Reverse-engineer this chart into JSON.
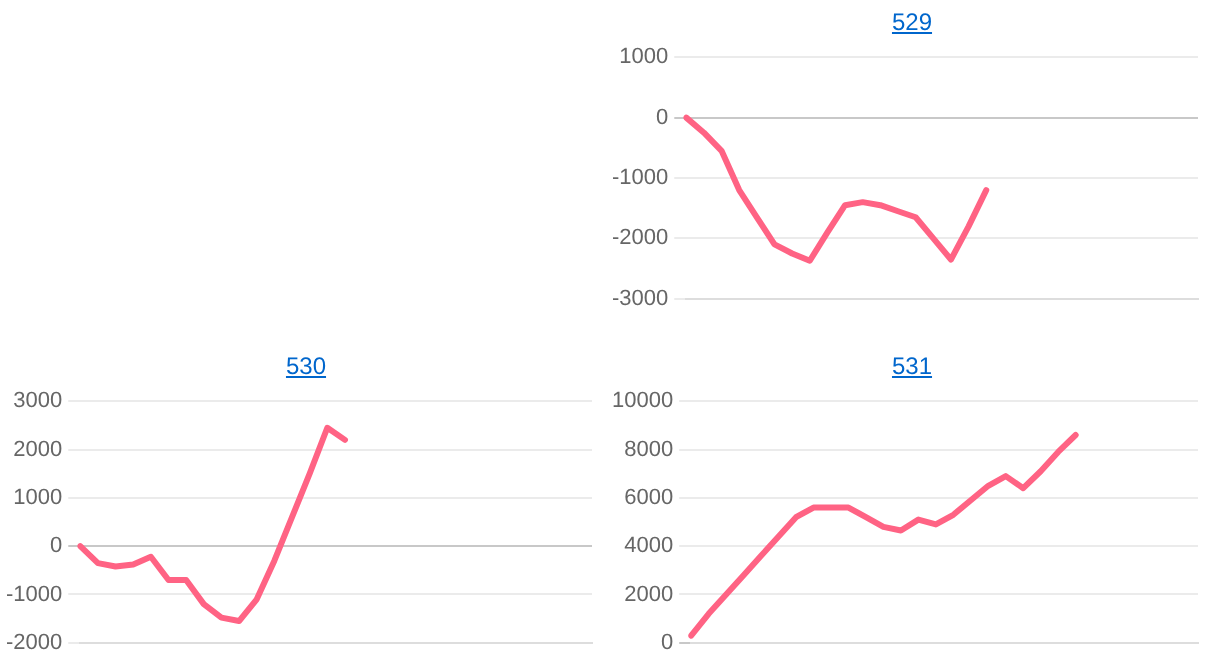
{
  "chart_data": [
    {
      "type": "line",
      "title": "529",
      "categories": [
        null,
        null,
        null,
        null,
        null,
        null,
        null,
        null,
        null,
        null,
        null,
        null,
        null,
        null,
        null,
        null,
        null,
        null,
        null,
        null,
        null,
        null,
        null,
        null,
        null,
        null,
        null,
        null,
        null,
        null
      ],
      "values": [
        0,
        -250,
        -550,
        -1200,
        -1650,
        -2100,
        -2250,
        -2370,
        -1900,
        -1450,
        -1400,
        -1450,
        -1550,
        -1650,
        -2000,
        -2350,
        -1800,
        -1200,
        null,
        null,
        null,
        null,
        null,
        null,
        null,
        null,
        null,
        null,
        null,
        null
      ],
      "color": "#ff6384",
      "ylim": [
        -3000,
        1000
      ],
      "yticks": [
        -3000,
        -2000,
        -1000,
        0,
        1000
      ],
      "grid": "y",
      "marker": "none"
    },
    {
      "type": "line",
      "title": "530",
      "categories": [
        null,
        null,
        null,
        null,
        null,
        null,
        null,
        null,
        null,
        null,
        null,
        null,
        null,
        null,
        null,
        null,
        null,
        null,
        null,
        null,
        null,
        null,
        null,
        null,
        null,
        null,
        null,
        null,
        null,
        null
      ],
      "values": [
        0,
        -350,
        -420,
        -380,
        -220,
        -700,
        -700,
        -1200,
        -1480,
        -1550,
        -1100,
        -300,
        600,
        1500,
        2450,
        2200,
        null,
        null,
        null,
        null,
        null,
        null,
        null,
        null,
        null,
        null,
        null,
        null,
        null,
        null
      ],
      "color": "#ff6384",
      "ylim": [
        -2000,
        3000
      ],
      "yticks": [
        -2000,
        -1000,
        0,
        1000,
        2000,
        3000
      ],
      "grid": "y",
      "marker": "none"
    },
    {
      "type": "line",
      "title": "531",
      "categories": [
        null,
        null,
        null,
        null,
        null,
        null,
        null,
        null,
        null,
        null,
        null,
        null,
        null,
        null,
        null,
        null,
        null,
        null,
        null,
        null,
        null,
        null,
        null,
        null,
        null,
        null,
        null,
        null,
        null,
        null
      ],
      "values": [
        300,
        1200,
        2000,
        2800,
        3600,
        4400,
        5200,
        5600,
        5600,
        5600,
        5200,
        4800,
        4650,
        5100,
        4900,
        5300,
        5900,
        6500,
        6900,
        6400,
        7100,
        7900,
        8600,
        null,
        null,
        null,
        null,
        null,
        null,
        null
      ],
      "color": "#ff6384",
      "ylim": [
        0,
        10000
      ],
      "yticks": [
        0,
        2000,
        4000,
        6000,
        8000,
        10000
      ],
      "grid": "y",
      "marker": "none"
    }
  ]
}
